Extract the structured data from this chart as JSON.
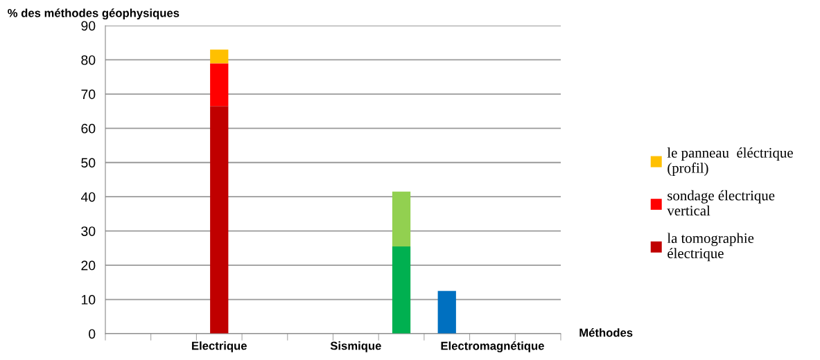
{
  "chart_data": {
    "type": "bar",
    "stacked": true,
    "ylabel": "% des méthodes géophysiques",
    "xlabel": "Méthodes",
    "categories": [
      null,
      null,
      "Electrique",
      null,
      null,
      "Sismique",
      null,
      null,
      "Electromagnétique",
      null
    ],
    "series": [
      {
        "name": "la tomographie\nélectrique",
        "color": "#c00000",
        "values": [
          null,
          null,
          66.5,
          null,
          null,
          null,
          null,
          null,
          null,
          null
        ]
      },
      {
        "name": "sondage électrique\nvertical",
        "color": "#ff0000",
        "values": [
          null,
          null,
          12.5,
          null,
          null,
          null,
          null,
          null,
          null,
          null
        ]
      },
      {
        "name": "le panneau  éléctrique\n(profil)",
        "color": "#ffc000",
        "values": [
          null,
          null,
          4,
          null,
          null,
          null,
          null,
          null,
          null,
          null
        ]
      },
      {
        "color": "#00b050",
        "values": [
          null,
          null,
          null,
          null,
          null,
          null,
          25.5,
          null,
          null,
          null
        ]
      },
      {
        "color": "#92d050",
        "values": [
          null,
          null,
          null,
          null,
          null,
          null,
          16,
          null,
          null,
          null
        ]
      },
      {
        "color": "#0070c0",
        "values": [
          null,
          null,
          null,
          null,
          null,
          null,
          null,
          12.5,
          null,
          null
        ]
      }
    ],
    "ylim": [
      0,
      90
    ],
    "yticks": [
      0,
      10,
      20,
      30,
      40,
      50,
      60,
      70,
      80,
      90
    ],
    "grid": "y",
    "legend": "right"
  }
}
